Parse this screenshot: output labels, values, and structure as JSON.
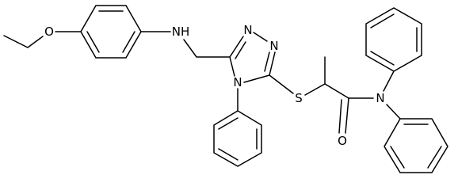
{
  "atom_labels": [
    "O",
    "NH",
    "N",
    "N",
    "N",
    "S",
    "N",
    "O"
  ]
}
